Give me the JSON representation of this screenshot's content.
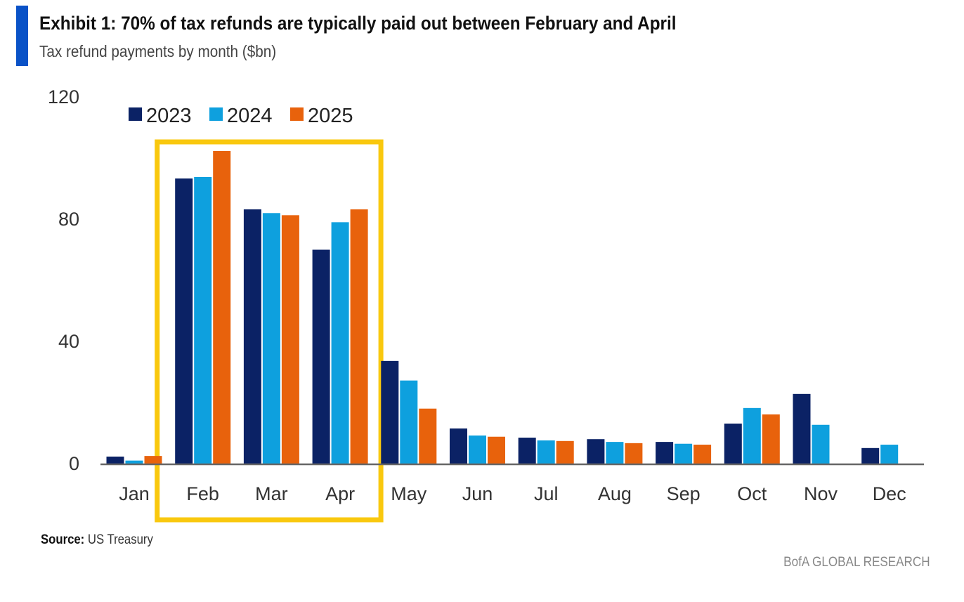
{
  "header": {
    "title": "Exhibit 1: 70% of tax refunds are typically paid out between February and April",
    "subtitle": "Tax refund payments by month ($bn)"
  },
  "footer": {
    "source_label": "Source:",
    "source_text": "US Treasury",
    "brand": "BofA GLOBAL RESEARCH"
  },
  "chart_data": {
    "type": "bar",
    "title": "Exhibit 1: 70% of tax refunds are typically paid out between February and April",
    "subtitle": "Tax refund payments by month ($bn)",
    "categories": [
      "Jan",
      "Feb",
      "Mar",
      "Apr",
      "May",
      "Jun",
      "Jul",
      "Aug",
      "Sep",
      "Oct",
      "Nov",
      "Dec"
    ],
    "series": [
      {
        "name": "2023",
        "color": "#0b2265",
        "values": [
          2.3,
          93.3,
          83.2,
          70,
          33.6,
          11.5,
          8.5,
          8,
          7.1,
          13.1,
          22.8,
          5.1
        ]
      },
      {
        "name": "2024",
        "color": "#0ea0de",
        "values": [
          1,
          93.8,
          82,
          79,
          27.2,
          9.2,
          7.6,
          7.1,
          6.5,
          18.2,
          12.7,
          6.2
        ]
      },
      {
        "name": "2025",
        "color": "#e8620c",
        "values": [
          2.5,
          102.3,
          81.3,
          83.2,
          18,
          8.8,
          7.4,
          6.7,
          6.2,
          16.1,
          null,
          null
        ]
      }
    ],
    "yticks": [
      "0",
      "40",
      "80",
      "120"
    ],
    "ylim": [
      0,
      120
    ],
    "grid": false,
    "legend": "top-left",
    "highlight": {
      "categories": [
        "Feb",
        "Mar",
        "Apr"
      ],
      "color": "#f9c80e"
    }
  }
}
